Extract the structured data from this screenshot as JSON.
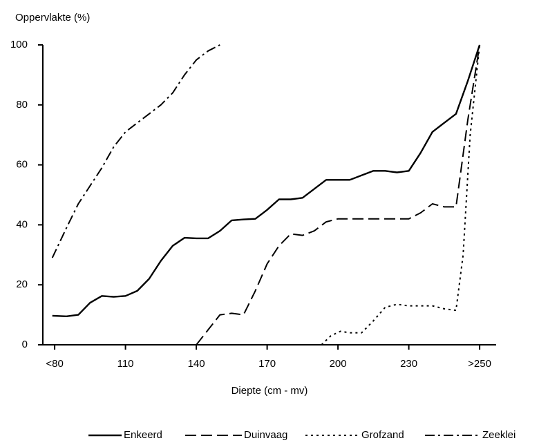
{
  "chart_data": {
    "type": "line",
    "y_label": "Oppervlakte (%)",
    "x_label": "Diepte (cm - mv)",
    "xlim": [
      75,
      267
    ],
    "ylim": [
      0,
      100
    ],
    "xticks": [
      {
        "value": 80,
        "label": "<80"
      },
      110,
      140,
      170,
      200,
      230,
      {
        "value": 260,
        "label": ">250"
      }
    ],
    "yticks": [
      0,
      20,
      40,
      60,
      80,
      100
    ],
    "grid": false,
    "legend": "bottom",
    "series": [
      {
        "name": "Enkeerd",
        "color": "#000000",
        "dash": "solid",
        "x": [
          79,
          85,
          90,
          95,
          100,
          105,
          110,
          115,
          120,
          125,
          130,
          135,
          140,
          145,
          150,
          155,
          160,
          165,
          170,
          175,
          180,
          185,
          190,
          195,
          200,
          205,
          210,
          215,
          220,
          225,
          230,
          235,
          240,
          245,
          250,
          255,
          260
        ],
        "values": [
          9.7,
          9.5,
          10,
          14,
          16.3,
          16,
          16.3,
          18,
          22,
          28,
          33,
          35.7,
          35.5,
          35.5,
          38,
          41.5,
          41.8,
          42,
          45,
          48.5,
          48.5,
          49,
          52,
          55,
          55,
          55,
          56.5,
          58,
          58,
          57.5,
          58,
          64,
          71,
          74,
          77,
          88,
          100
        ]
      },
      {
        "name": "Duinvaag",
        "color": "#000000",
        "dash": "dashed",
        "x": [
          140,
          145,
          150,
          155,
          160,
          165,
          170,
          175,
          180,
          185,
          190,
          195,
          200,
          210,
          220,
          230,
          235,
          240,
          245,
          250,
          255,
          260
        ],
        "values": [
          0,
          5,
          10,
          10.5,
          10,
          18,
          27,
          33,
          37,
          36.5,
          38,
          41,
          42,
          42,
          42,
          42,
          44,
          47,
          46,
          46,
          75,
          100
        ]
      },
      {
        "name": "Grofzand",
        "color": "#000000",
        "dash": "dotted",
        "x": [
          193,
          197,
          201,
          205,
          210,
          215,
          220,
          225,
          230,
          240,
          245,
          250,
          253,
          256,
          260
        ],
        "values": [
          0,
          3,
          4.5,
          4,
          4,
          8,
          12.5,
          13.5,
          13,
          13,
          12,
          11.5,
          30,
          70,
          100
        ]
      },
      {
        "name": "Zeeklei",
        "color": "#000000",
        "dash": "dashdot",
        "x": [
          79,
          85,
          90,
          95,
          100,
          105,
          110,
          115,
          120,
          125,
          130,
          135,
          140,
          145,
          150
        ],
        "values": [
          29,
          39,
          47,
          53,
          59,
          66,
          71,
          74,
          77,
          80,
          84,
          90,
          95,
          98,
          100
        ]
      }
    ]
  }
}
